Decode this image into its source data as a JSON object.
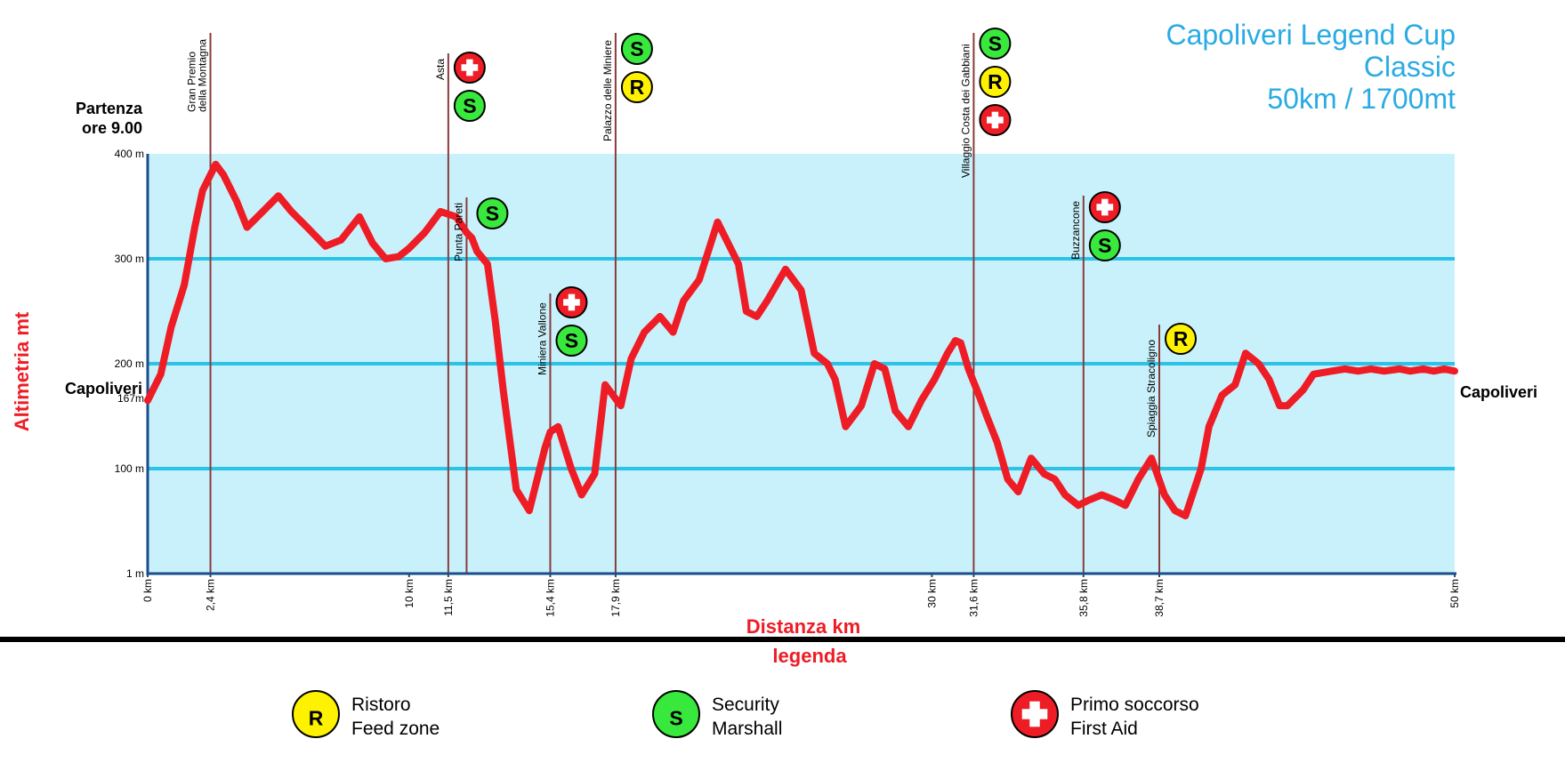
{
  "colors": {
    "plot_bg": "#c9f1fb",
    "grid": "#2bc3e8",
    "axis": "#1a4e8a",
    "profile": "#ee1c25",
    "title": "#29abe2",
    "marker_line": "#8a3b3b",
    "ristoro": "#fff200",
    "security": "#39e83d",
    "first_aid": "#ee1c25"
  },
  "chart_data": {
    "type": "area",
    "title": [
      "Capoliveri Legend Cup",
      "Classic",
      "50km / 1700mt"
    ],
    "ylabel": "Altimetria mt",
    "xlabel": "Distanza km",
    "xlim": [
      0,
      50
    ],
    "ylim": [
      0,
      400
    ],
    "yticks": [
      {
        "value": 0,
        "label": "1 m"
      },
      {
        "value": 100,
        "label": "100 m"
      },
      {
        "value": 167,
        "label": "167m"
      },
      {
        "value": 200,
        "label": "200 m"
      },
      {
        "value": 300,
        "label": "300 m"
      },
      {
        "value": 400,
        "label": "400 m"
      }
    ],
    "xticks": [
      {
        "value": 0,
        "label": "0 km"
      },
      {
        "value": 2.4,
        "label": "2,4 km"
      },
      {
        "value": 10,
        "label": "10 km"
      },
      {
        "value": 11.5,
        "label": "11,5 km"
      },
      {
        "value": 15.4,
        "label": "15,4 km"
      },
      {
        "value": 17.9,
        "label": "17,9 km"
      },
      {
        "value": 30,
        "label": "30 km"
      },
      {
        "value": 31.6,
        "label": "31,6 km"
      },
      {
        "value": 35.8,
        "label": "35,8 km"
      },
      {
        "value": 38.7,
        "label": "38,7 km"
      },
      {
        "value": 50,
        "label": "50 km"
      }
    ],
    "start_label": [
      "Partenza",
      "ore 9.00"
    ],
    "start_town": "Capoliveri",
    "end_town": "Capoliveri",
    "profile": {
      "x": [
        0,
        0.5,
        0.9,
        1.4,
        1.8,
        2.1,
        2.6,
        2.9,
        3.4,
        3.8,
        4.4,
        5.0,
        5.5,
        6.1,
        6.8,
        7.4,
        8.1,
        8.6,
        9.1,
        9.6,
        10.0,
        10.6,
        11.2,
        11.8,
        12.2,
        12.4,
        12.6,
        13.0,
        13.3,
        13.6,
        14.1,
        14.6,
        15.0,
        15.2,
        15.4,
        15.7,
        16.2,
        16.6,
        17.1,
        17.5,
        18.1,
        18.5,
        19.0,
        19.6,
        20.1,
        20.5,
        21.1,
        21.8,
        22.6,
        22.9,
        23.3,
        23.7,
        24.4,
        25.0,
        25.5,
        26.0,
        26.3,
        26.7,
        27.3,
        27.8,
        28.2,
        28.6,
        29.1,
        29.6,
        30.1,
        30.6,
        30.9,
        31.1,
        31.4,
        31.8,
        32.1,
        32.5,
        32.9,
        33.3,
        33.8,
        34.3,
        34.7,
        35.1,
        35.6,
        36.0,
        36.5,
        37.0,
        37.4,
        37.9,
        38.4,
        38.9,
        39.3,
        39.7,
        40.3,
        40.6,
        41.1,
        41.6,
        42.0,
        42.5,
        42.9,
        43.3,
        43.6,
        44.2,
        44.6,
        45.3,
        45.8,
        46.3,
        46.8,
        47.3,
        47.9,
        48.3,
        48.8,
        49.2,
        49.6,
        50.0
      ],
      "y": [
        165,
        190,
        235,
        275,
        330,
        365,
        390,
        380,
        355,
        330,
        345,
        360,
        345,
        330,
        312,
        318,
        340,
        315,
        300,
        302,
        310,
        325,
        345,
        340,
        325,
        320,
        307,
        295,
        240,
        175,
        80,
        60,
        100,
        120,
        135,
        140,
        100,
        75,
        95,
        180,
        160,
        205,
        230,
        245,
        230,
        260,
        280,
        335,
        295,
        250,
        245,
        260,
        290,
        270,
        210,
        200,
        185,
        140,
        160,
        200,
        195,
        155,
        140,
        165,
        185,
        210,
        222,
        220,
        195,
        170,
        150,
        125,
        90,
        78,
        110,
        95,
        90,
        75,
        65,
        70,
        75,
        70,
        65,
        90,
        110,
        75,
        60,
        55,
        100,
        140,
        170,
        180,
        210,
        200,
        185,
        160,
        160,
        175,
        190,
        193,
        195,
        193,
        195,
        193,
        195,
        193,
        195,
        193,
        195,
        193
      ]
    },
    "waypoints": [
      {
        "km": 2.4,
        "name": [
          "Gran Premio",
          "della Montagna"
        ],
        "services": []
      },
      {
        "km": 11.5,
        "name": [
          "Asta"
        ],
        "services": [
          "first_aid",
          "security"
        ]
      },
      {
        "km": 12.2,
        "name": [
          "Punta Pareti"
        ],
        "services": [
          "security"
        ]
      },
      {
        "km": 15.4,
        "name": [
          "Miniera Vallone"
        ],
        "services": [
          "first_aid",
          "security"
        ]
      },
      {
        "km": 17.9,
        "name": [
          "Palazzo delle Miniere"
        ],
        "services": [
          "security",
          "ristoro"
        ]
      },
      {
        "km": 31.6,
        "name": [
          "Villaggio Costa dei Gabbiani"
        ],
        "services": [
          "security",
          "ristoro",
          "first_aid"
        ]
      },
      {
        "km": 35.8,
        "name": [
          "Buzzancone"
        ],
        "services": [
          "first_aid",
          "security"
        ]
      },
      {
        "km": 38.7,
        "name": [
          "Spiaggia Stracoligno"
        ],
        "services": [
          "ristoro"
        ]
      }
    ]
  },
  "legend": {
    "title": "legenda",
    "items": [
      {
        "key": "ristoro",
        "symbol": "R",
        "line1": "Ristoro",
        "line2": "Feed zone"
      },
      {
        "key": "security",
        "symbol": "S",
        "line1": "Security",
        "line2": "Marshall"
      },
      {
        "key": "first_aid",
        "symbol": "+",
        "line1": "Primo soccorso",
        "line2": "First Aid"
      }
    ]
  }
}
